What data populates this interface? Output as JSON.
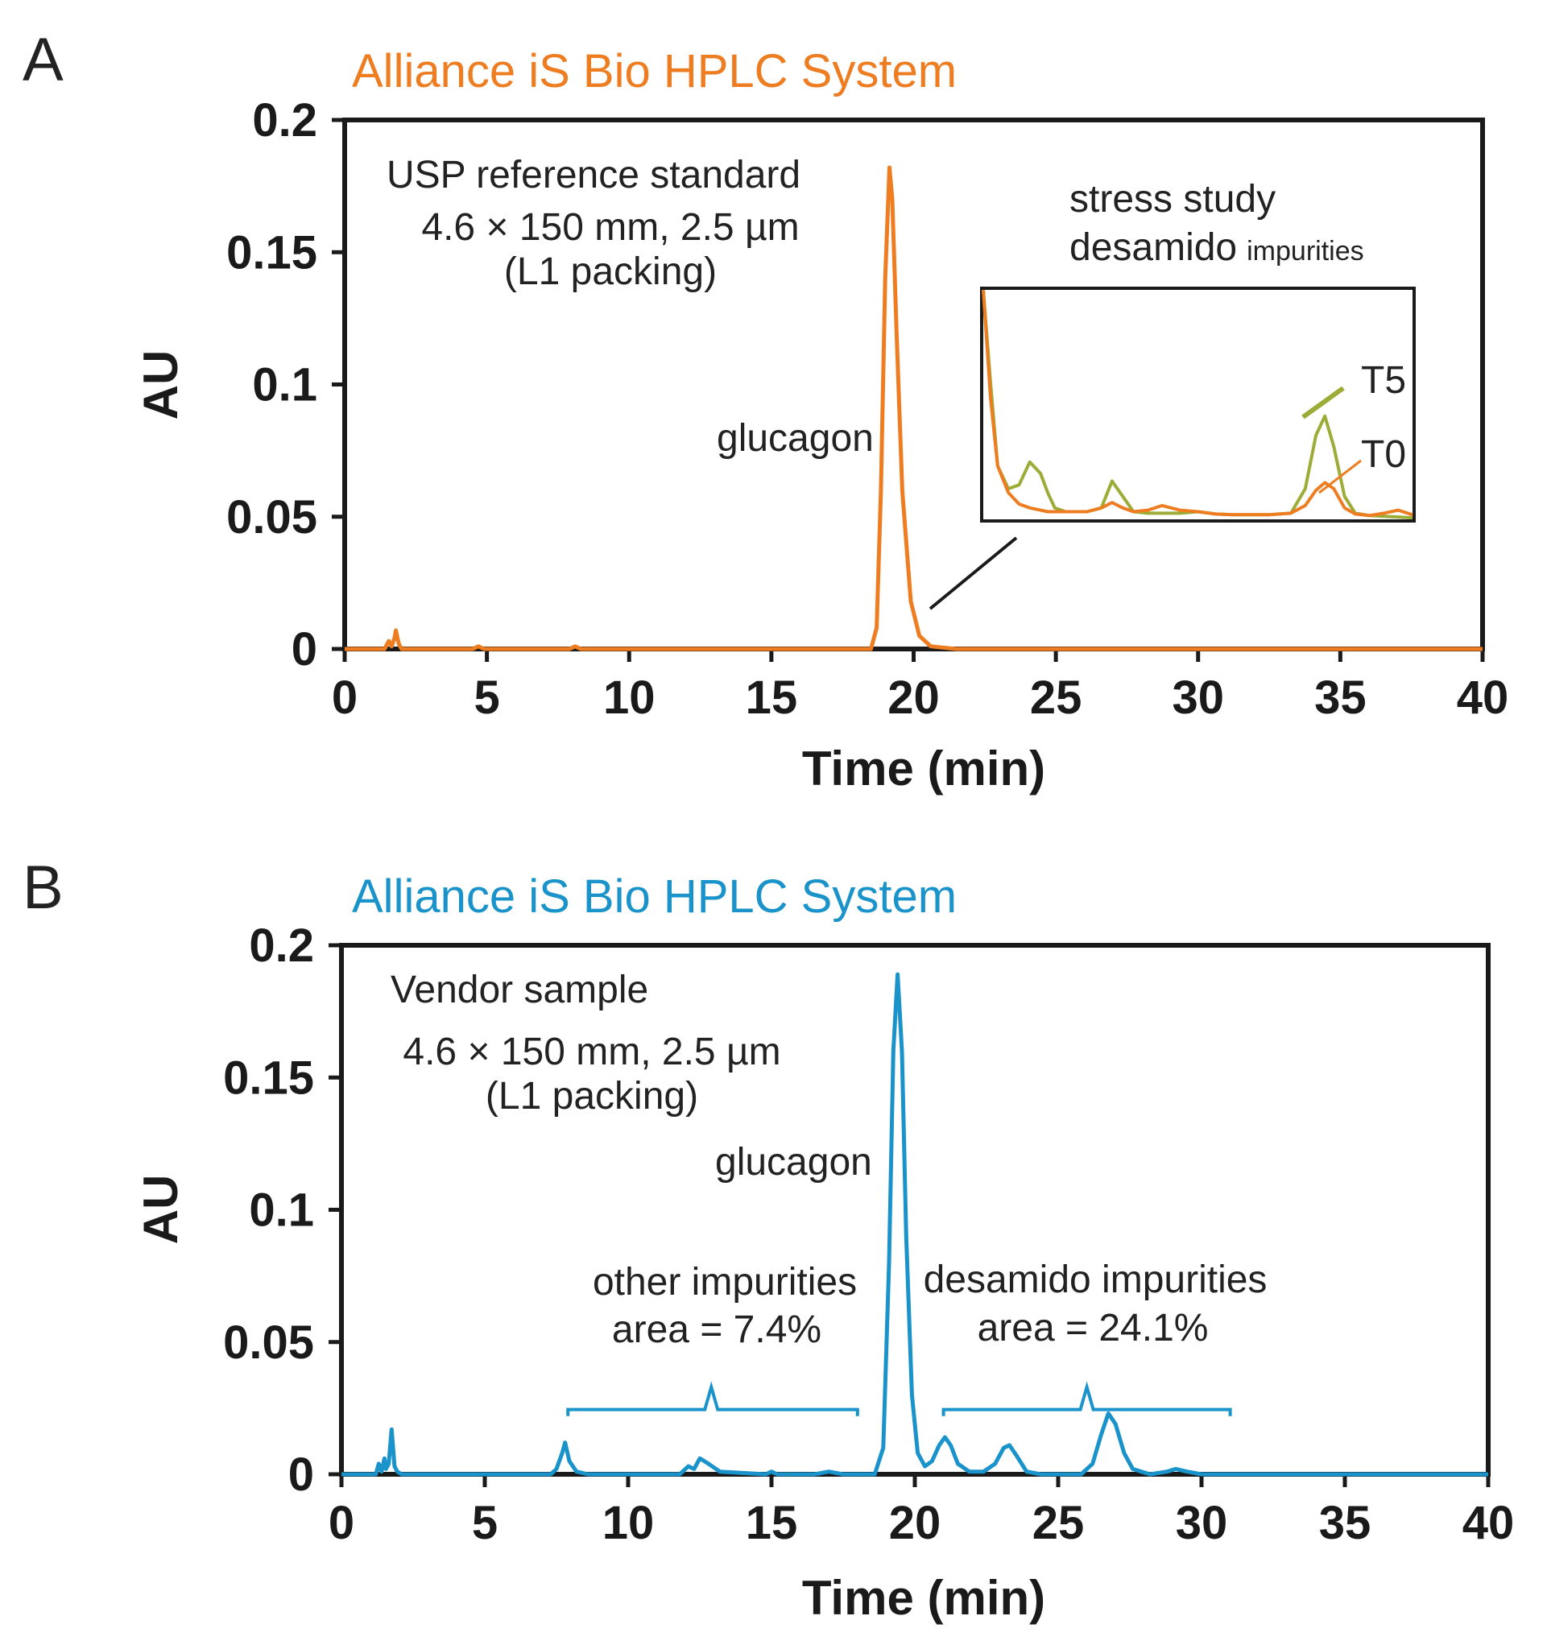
{
  "colors": {
    "panel_a": "#EE7D22",
    "panel_b": "#1A93CB",
    "t5": "#9CAC37",
    "t0": "#EE7D22",
    "axis": "#1a1a1a"
  },
  "chart_data": [
    {
      "type": "line",
      "panel_label": "A",
      "title": "Alliance iS Bio HPLC System",
      "xlabel": "Time (min)",
      "ylabel": "AU",
      "xlim": [
        0,
        40
      ],
      "ylim": [
        0,
        0.2
      ],
      "xticks": [
        0,
        5,
        10,
        15,
        20,
        25,
        30,
        35,
        40
      ],
      "yticks": [
        0,
        0.05,
        0.1,
        0.15,
        0.2
      ],
      "ytick_labels": [
        "0",
        "0.05",
        "0.1",
        "0.15",
        "0.2"
      ],
      "grid": false,
      "annotations": {
        "sample_name": "USP reference standard",
        "column_line1": "4.6 × 150 mm, 2.5 µm",
        "column_line2": "(L1 packing)",
        "peak_label": "glucagon"
      },
      "series": [
        {
          "x": [
            0,
            1.4,
            1.55,
            1.65,
            1.75,
            1.8,
            1.9,
            2.0,
            4.5,
            4.7,
            4.9,
            7.9,
            8.1,
            8.3,
            16.0,
            18.5,
            18.7,
            18.85,
            19.0,
            19.15,
            19.25,
            19.4,
            19.6,
            19.9,
            20.2,
            20.6,
            21.5,
            25.0,
            28.0,
            32.0,
            36.0,
            40.0
          ],
          "y": [
            0,
            0,
            0.003,
            0.001,
            0.004,
            0.007,
            0.002,
            0,
            0,
            0.001,
            0,
            0,
            0.001,
            0,
            0,
            0,
            0.008,
            0.06,
            0.14,
            0.182,
            0.17,
            0.12,
            0.06,
            0.018,
            0.005,
            0.001,
            0,
            0,
            0,
            0,
            0,
            0
          ]
        }
      ],
      "inset": {
        "title_line1": "stress study",
        "title_line2_main": "desamido",
        "title_line2_small": "impurities",
        "xlim": [
          20,
          32
        ],
        "ylim": [
          0,
          0.03
        ],
        "series": [
          {
            "name": "T5",
            "x": [
              20.0,
              20.2,
              20.4,
              20.7,
              21.0,
              21.3,
              21.6,
              21.8,
              22.0,
              22.3,
              22.6,
              22.9,
              23.3,
              23.6,
              23.9,
              24.2,
              24.6,
              25.0,
              25.5,
              26.0,
              26.5,
              27.0,
              27.5,
              28.0,
              28.6,
              29.0,
              29.3,
              29.55,
              29.8,
              30.1,
              30.4,
              30.8,
              31.2,
              31.6,
              32.0
            ],
            "y": [
              0.03,
              0.018,
              0.007,
              0.004,
              0.0045,
              0.0075,
              0.006,
              0.0035,
              0.0015,
              0.001,
              0.001,
              0.001,
              0.0015,
              0.005,
              0.003,
              0.001,
              0.0008,
              0.0008,
              0.0008,
              0.001,
              0.0007,
              0.0006,
              0.0006,
              0.0006,
              0.0008,
              0.004,
              0.011,
              0.0135,
              0.0095,
              0.003,
              0.0008,
              0.0005,
              0.0004,
              0.0003,
              0.0002
            ]
          },
          {
            "name": "T0",
            "x": [
              20.0,
              20.2,
              20.4,
              20.7,
              21.0,
              21.3,
              21.6,
              21.8,
              22.0,
              22.3,
              22.6,
              22.9,
              23.3,
              23.6,
              23.9,
              24.2,
              24.6,
              25.0,
              25.5,
              26.0,
              26.5,
              27.0,
              27.5,
              28.0,
              28.6,
              29.0,
              29.3,
              29.55,
              29.8,
              30.1,
              30.4,
              30.8,
              31.2,
              31.6,
              32.0
            ],
            "y": [
              0.03,
              0.016,
              0.007,
              0.0035,
              0.002,
              0.0015,
              0.0012,
              0.001,
              0.001,
              0.001,
              0.001,
              0.001,
              0.0015,
              0.0022,
              0.0015,
              0.001,
              0.0012,
              0.0018,
              0.0012,
              0.001,
              0.0007,
              0.0006,
              0.0006,
              0.0006,
              0.0008,
              0.0018,
              0.0038,
              0.0048,
              0.004,
              0.0015,
              0.0007,
              0.0005,
              0.0008,
              0.0012,
              0.0006
            ]
          }
        ]
      }
    },
    {
      "type": "line",
      "panel_label": "B",
      "title": "Alliance iS Bio HPLC System",
      "xlabel": "Time (min)",
      "ylabel": "AU",
      "xlim": [
        0,
        40
      ],
      "ylim": [
        0,
        0.2
      ],
      "xticks": [
        0,
        5,
        10,
        15,
        20,
        25,
        30,
        35,
        40
      ],
      "yticks": [
        0,
        0.05,
        0.1,
        0.15,
        0.2
      ],
      "ytick_labels": [
        "0",
        "0.05",
        "0.1",
        "0.15",
        "0.2"
      ],
      "grid": false,
      "annotations": {
        "sample_name": "Vendor sample",
        "column_line1": "4.6 × 150 mm, 2.5 µm",
        "column_line2": "(L1 packing)",
        "peak_label": "glucagon",
        "other_line1": "other impurities",
        "other_line2": "area = 7.4%",
        "desamido_line1": "desamido impurities",
        "desamido_line2": "area = 24.1%",
        "brackets": [
          {
            "x_start": 7.9,
            "x_end": 18.0,
            "x_tip": 12.9,
            "y_base": 0.022,
            "y_top": 0.033
          },
          {
            "x_start": 21.0,
            "x_end": 31.0,
            "x_tip": 26.0,
            "y_base": 0.022,
            "y_top": 0.033
          }
        ]
      },
      "series": [
        {
          "x": [
            0,
            1.2,
            1.3,
            1.4,
            1.5,
            1.55,
            1.65,
            1.75,
            1.85,
            1.95,
            2.1,
            7.3,
            7.5,
            7.7,
            7.8,
            7.95,
            8.2,
            8.6,
            11.8,
            12.1,
            12.3,
            12.5,
            12.8,
            13.2,
            14.8,
            15.0,
            15.2,
            16.5,
            17.0,
            17.5,
            18.6,
            18.9,
            19.1,
            19.25,
            19.4,
            19.55,
            19.7,
            19.9,
            20.1,
            20.35,
            20.6,
            20.85,
            21.05,
            21.25,
            21.5,
            21.9,
            22.4,
            22.8,
            23.1,
            23.3,
            23.55,
            23.9,
            24.4,
            25.8,
            26.2,
            26.5,
            26.75,
            27.0,
            27.3,
            27.6,
            28.2,
            28.8,
            29.1,
            29.5,
            30.0,
            32.0,
            36.0,
            40.0
          ],
          "y": [
            0,
            0,
            0.004,
            0.001,
            0.006,
            0.002,
            0.004,
            0.017,
            0.003,
            0.001,
            0,
            0,
            0.002,
            0.008,
            0.012,
            0.005,
            0.001,
            0,
            0,
            0.003,
            0.002,
            0.006,
            0.004,
            0.001,
            0,
            0.001,
            0,
            0,
            0.001,
            0,
            0,
            0.01,
            0.08,
            0.16,
            0.189,
            0.16,
            0.09,
            0.03,
            0.008,
            0.003,
            0.005,
            0.011,
            0.014,
            0.011,
            0.004,
            0.001,
            0.001,
            0.004,
            0.01,
            0.011,
            0.007,
            0.001,
            0,
            0,
            0.004,
            0.015,
            0.023,
            0.019,
            0.008,
            0.002,
            0,
            0.001,
            0.002,
            0.001,
            0,
            0,
            0,
            0
          ]
        }
      ]
    }
  ],
  "inset_series_labels": [
    "T5",
    "T0"
  ]
}
